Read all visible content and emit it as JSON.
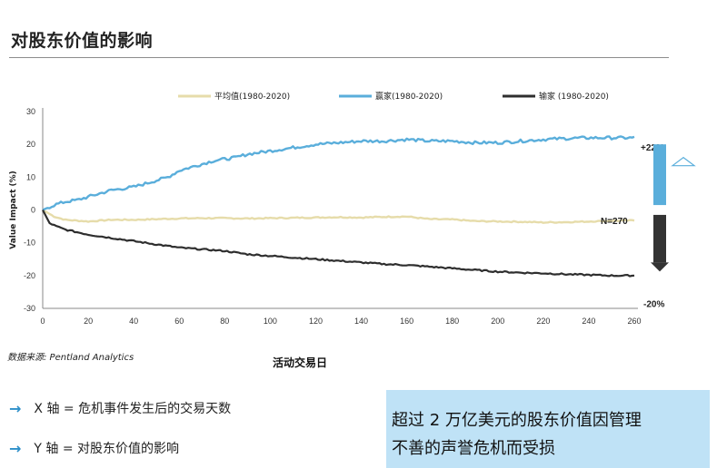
{
  "title": "对股东价值的影响",
  "source": "数据来源: Pentland Analytics",
  "bullets": [
    {
      "icon": "arrow-right-icon",
      "text": "X 轴 = 危机事件发生后的交易天数"
    },
    {
      "icon": "arrow-right-icon",
      "text": "Y 轴 = 对股东价值的影响"
    }
  ],
  "callout": {
    "line1": "超过 2 万亿美元的股东价值因管理",
    "line2": "不善的声誉危机而受损"
  },
  "colors": {
    "average": "#e6dcaa",
    "winners": "#5aaedb",
    "losers": "#2e2e2e",
    "accent": "#2d8fc9",
    "callout_bg": "#bfe2f6"
  },
  "chart_data": {
    "type": "line",
    "xlabel": "活动交易日",
    "ylabel": "Value Impact (%)",
    "xlim": [
      0,
      260
    ],
    "ylim": [
      -30,
      30
    ],
    "xticks": [
      0,
      20,
      40,
      60,
      80,
      100,
      120,
      140,
      160,
      180,
      200,
      220,
      240,
      260
    ],
    "yticks": [
      30,
      20,
      10,
      0,
      -10,
      -20,
      -30
    ],
    "grid": false,
    "legend_position": "top",
    "annotations": {
      "winners_end": "+22%",
      "losers_end": "-20%",
      "sample": "N=270"
    },
    "series": [
      {
        "name": "平均值(1980-2020)",
        "color": "#e6dcaa",
        "x": [
          0,
          5,
          10,
          20,
          30,
          40,
          50,
          60,
          70,
          80,
          90,
          100,
          110,
          120,
          130,
          140,
          150,
          160,
          170,
          180,
          190,
          200,
          210,
          220,
          230,
          240,
          250,
          260
        ],
        "values": [
          0,
          -2,
          -3,
          -3.5,
          -3,
          -3,
          -2.8,
          -2.6,
          -2.5,
          -2.5,
          -2.6,
          -2.5,
          -2.4,
          -2.3,
          -2.2,
          -2.3,
          -2.1,
          -2.0,
          -2.8,
          -2.9,
          -3.4,
          -3.5,
          -3.6,
          -3.8,
          -3.7,
          -3.5,
          -3.3,
          -3.2
        ]
      },
      {
        "name": "赢家(1980-2020)",
        "color": "#5aaedb",
        "x": [
          0,
          5,
          10,
          15,
          20,
          25,
          30,
          35,
          40,
          45,
          50,
          55,
          60,
          65,
          70,
          75,
          80,
          85,
          90,
          95,
          100,
          110,
          120,
          130,
          140,
          150,
          160,
          170,
          180,
          190,
          200,
          210,
          220,
          230,
          240,
          250,
          260
        ],
        "values": [
          0,
          1.5,
          2.5,
          3,
          4,
          5,
          6,
          6.5,
          7,
          8,
          9,
          10,
          12,
          13,
          14,
          15,
          15.5,
          16,
          17,
          17.5,
          18,
          19,
          20,
          20.5,
          21,
          21,
          21.5,
          21,
          21,
          20.5,
          20.5,
          21,
          21.5,
          21.8,
          22,
          22,
          22
        ]
      },
      {
        "name": "输家 (1980-2020)",
        "color": "#2e2e2e",
        "x": [
          0,
          3,
          6,
          10,
          20,
          30,
          40,
          50,
          60,
          70,
          80,
          90,
          100,
          110,
          120,
          130,
          140,
          150,
          160,
          170,
          180,
          190,
          200,
          210,
          220,
          230,
          240,
          250,
          260
        ],
        "values": [
          0,
          -4,
          -5,
          -6,
          -7.5,
          -8.5,
          -9.5,
          -10.5,
          -11.5,
          -12,
          -12.5,
          -13.5,
          -14,
          -14.5,
          -15,
          -15.5,
          -16,
          -16.5,
          -16.8,
          -17.3,
          -17.8,
          -18.3,
          -18.8,
          -19.1,
          -19.3,
          -19.6,
          -19.8,
          -20,
          -20
        ]
      }
    ]
  }
}
